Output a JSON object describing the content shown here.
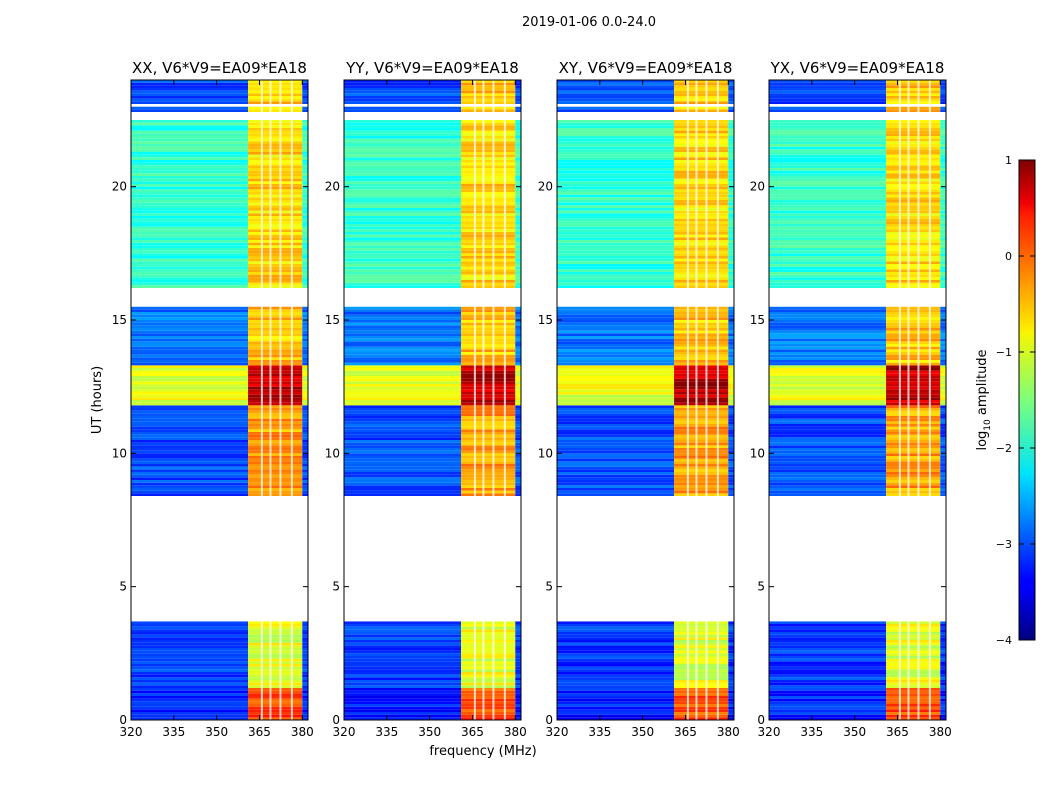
{
  "chart_data": {
    "type": "heatmap",
    "suptitle": "2019-01-06 0.0-24.0",
    "xlabel": "frequency (MHz)",
    "ylabel": "UT (hours)",
    "xlim": [
      320,
      382
    ],
    "ylim": [
      0,
      24
    ],
    "xticks": [
      "320",
      "335",
      "350",
      "365",
      "380"
    ],
    "xtick_values": [
      320,
      335,
      350,
      365,
      380
    ],
    "yticks": [
      "0",
      "5",
      "10",
      "15",
      "20"
    ],
    "ytick_values": [
      0,
      5,
      10,
      15,
      20
    ],
    "colorbar": {
      "label": "log10 amplitude",
      "label_main": "log",
      "label_sub": "10",
      "label_tail": " amplitude",
      "range": [
        -4,
        1
      ],
      "ticks": [
        "−4",
        "−3",
        "−2",
        "−1",
        "0",
        "1"
      ],
      "tick_values": [
        -4,
        -3,
        -2,
        -1,
        0,
        1
      ]
    },
    "panels": [
      {
        "title": "XX, V6*V9=EA09*EA18",
        "polarization": "XX"
      },
      {
        "title": "YY, V6*V9=EA09*EA18",
        "polarization": "YY"
      },
      {
        "title": "XY, V6*V9=EA09*EA18",
        "polarization": "XY"
      },
      {
        "title": "YX, V6*V9=EA09*EA18",
        "polarization": "YX"
      }
    ],
    "data_gaps_ut_hours": [
      [
        3.7,
        8.4
      ],
      [
        15.5,
        16.2
      ],
      [
        22.5,
        22.8
      ],
      [
        23.0,
        23.1
      ]
    ],
    "time_segments": [
      {
        "ut": [
          0.0,
          1.2
        ],
        "base_level": -3.2,
        "rfi_band_level": 0.0
      },
      {
        "ut": [
          1.2,
          3.7
        ],
        "base_level": -3.1,
        "rfi_band_level": -1.0
      },
      {
        "ut": [
          8.4,
          11.8
        ],
        "base_level": -3.0,
        "rfi_band_level": -0.4
      },
      {
        "ut": [
          11.8,
          13.3
        ],
        "base_level": -1.0,
        "rfi_band_level": 0.7
      },
      {
        "ut": [
          13.3,
          15.5
        ],
        "base_level": -2.8,
        "rfi_band_level": -0.6
      },
      {
        "ut": [
          16.2,
          22.5
        ],
        "base_level": -1.9,
        "rfi_band_level": -0.7
      },
      {
        "ut": [
          22.5,
          24.0
        ],
        "base_level": -3.0,
        "rfi_band_level": -0.6
      }
    ],
    "rfi_band_mhz": [
      361,
      380
    ],
    "colors": {
      "background": "#ffffff",
      "gap": "#ffffff",
      "axes": "#000000"
    }
  }
}
